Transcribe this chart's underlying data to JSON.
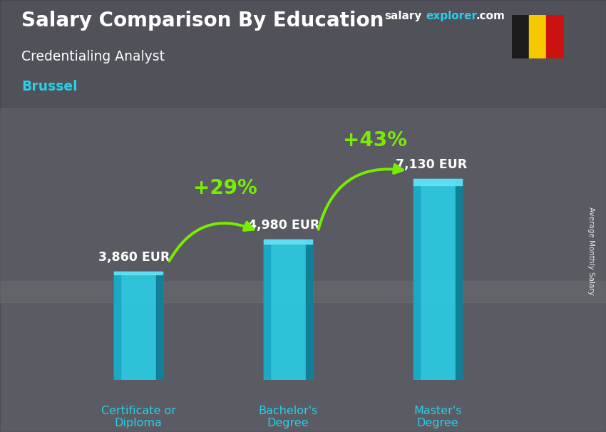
{
  "title": "Salary Comparison By Education",
  "subtitle_job": "Credentialing Analyst",
  "subtitle_city": "Brussel",
  "ylabel": "Average Monthly Salary",
  "categories": [
    "Certificate or\nDiploma",
    "Bachelor's\nDegree",
    "Master's\nDegree"
  ],
  "values": [
    3860,
    4980,
    7130
  ],
  "value_labels": [
    "3,860 EUR",
    "4,980 EUR",
    "7,130 EUR"
  ],
  "pct_labels": [
    "+29%",
    "+43%"
  ],
  "bar_color_main": "#29d0e8",
  "bar_color_left": "#1aa8c5",
  "bar_color_right": "#0e7a93",
  "bar_color_top": "#60e0f5",
  "text_color_white": "#ffffff",
  "text_color_cyan": "#29d0e8",
  "text_color_green": "#77ee00",
  "arrow_color": "#77ee00",
  "bg_overlay_color": "#303040",
  "bg_overlay_alpha": 0.55,
  "site_color_white": "#ffffff",
  "site_color_cyan": "#29d0e8",
  "flag_black": "#1c1c1c",
  "flag_yellow": "#f5c800",
  "flag_red": "#cc1111",
  "xlim": [
    -0.6,
    2.8
  ],
  "ylim": [
    0,
    9500
  ],
  "bar_width": 0.32,
  "bar_positions": [
    0,
    1,
    2
  ]
}
